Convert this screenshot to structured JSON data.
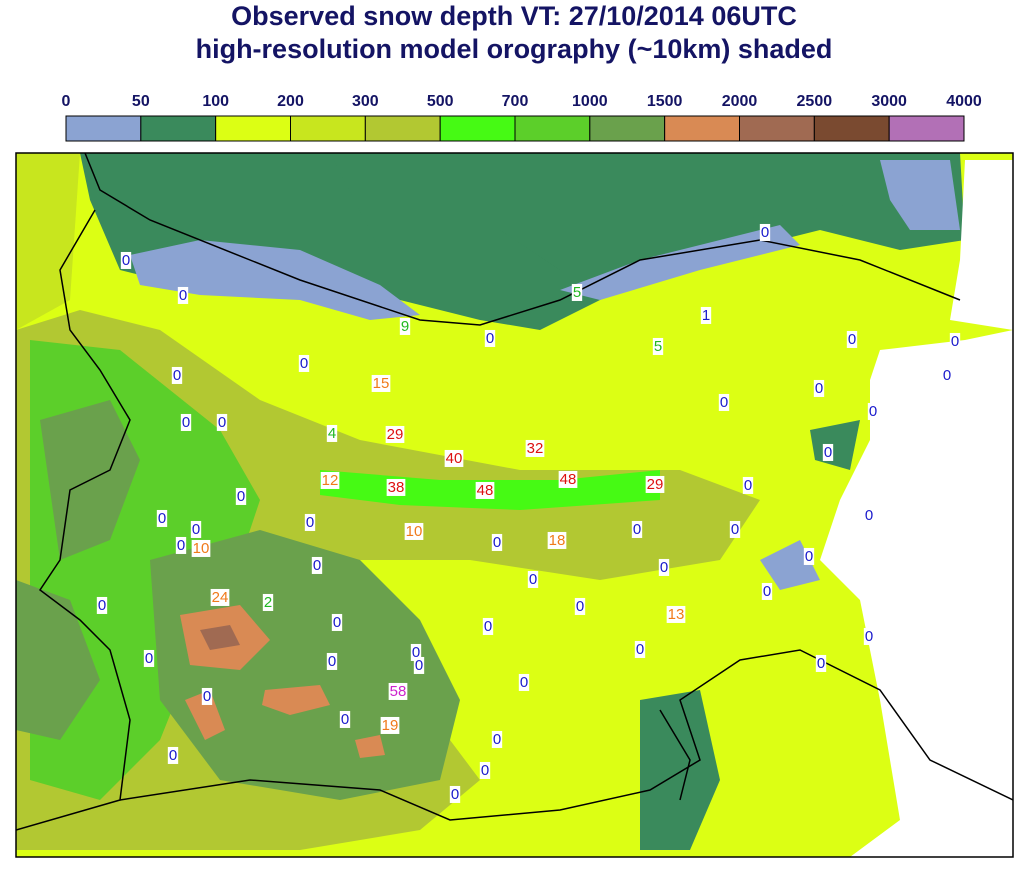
{
  "title": {
    "line1": "Observed snow depth VT: 27/10/2014 06UTC",
    "line2": "high-resolution model orography (~10km) shaded"
  },
  "legend": {
    "labels": [
      0,
      50,
      100,
      200,
      300,
      500,
      700,
      1000,
      1500,
      2000,
      2500,
      3000,
      4000
    ],
    "colors": [
      "#8ba3d2",
      "#3a8a5c",
      "#dcff14",
      "#c8e61e",
      "#b2c832",
      "#46fa14",
      "#5ccf2a",
      "#6aa14c",
      "#d98a54",
      "#a06a52",
      "#7a4a30",
      "#b270b6"
    ]
  },
  "stations": [
    {
      "value": 0,
      "color": "#1a1acc"
    },
    {
      "value": 0,
      "color": "#1a1acc"
    },
    {
      "value": 9,
      "color": "#22b822"
    },
    {
      "value": 5,
      "color": "#22b822"
    },
    {
      "value": 0,
      "color": "#1a1acc"
    },
    {
      "value": 1,
      "color": "#1a1acc"
    },
    {
      "value": 0,
      "color": "#1a1acc"
    },
    {
      "value": 0,
      "color": "#1a1acc"
    },
    {
      "value": 0,
      "color": "#1a1acc"
    },
    {
      "value": 5,
      "color": "#22b822"
    },
    {
      "value": 0,
      "color": "#1a1acc"
    },
    {
      "value": 0,
      "color": "#1a1acc"
    },
    {
      "value": 0,
      "color": "#1a1acc"
    },
    {
      "value": 15,
      "color": "#f07a1a"
    },
    {
      "value": 0,
      "color": "#1a1acc"
    },
    {
      "value": 0,
      "color": "#1a1acc"
    },
    {
      "value": 0,
      "color": "#1a1acc"
    },
    {
      "value": 0,
      "color": "#1a1acc"
    },
    {
      "value": 0,
      "color": "#1a1acc"
    },
    {
      "value": 4,
      "color": "#22b822"
    },
    {
      "value": 29,
      "color": "#dd1111"
    },
    {
      "value": 40,
      "color": "#dd1111"
    },
    {
      "value": 32,
      "color": "#dd1111"
    },
    {
      "value": 0,
      "color": "#1a1acc"
    },
    {
      "value": 12,
      "color": "#f07a1a"
    },
    {
      "value": 38,
      "color": "#dd1111"
    },
    {
      "value": 48,
      "color": "#dd1111"
    },
    {
      "value": 48,
      "color": "#dd1111"
    },
    {
      "value": 29,
      "color": "#dd1111"
    },
    {
      "value": 0,
      "color": "#1a1acc"
    },
    {
      "value": 0,
      "color": "#1a1acc"
    },
    {
      "value": 0,
      "color": "#1a1acc"
    },
    {
      "value": 0,
      "color": "#1a1acc"
    },
    {
      "value": 0,
      "color": "#1a1acc"
    },
    {
      "value": 0,
      "color": "#1a1acc"
    },
    {
      "value": 10,
      "color": "#f07a1a"
    },
    {
      "value": 0,
      "color": "#1a1acc"
    },
    {
      "value": 0,
      "color": "#1a1acc"
    },
    {
      "value": 0,
      "color": "#1a1acc"
    },
    {
      "value": 10,
      "color": "#f07a1a"
    },
    {
      "value": 0,
      "color": "#1a1acc"
    },
    {
      "value": 18,
      "color": "#f07a1a"
    },
    {
      "value": 0,
      "color": "#1a1acc"
    },
    {
      "value": 0,
      "color": "#1a1acc"
    },
    {
      "value": 0,
      "color": "#1a1acc"
    },
    {
      "value": 0,
      "color": "#1a1acc"
    },
    {
      "value": 0,
      "color": "#1a1acc"
    },
    {
      "value": 24,
      "color": "#f07a1a"
    },
    {
      "value": 2,
      "color": "#22b822"
    },
    {
      "value": 0,
      "color": "#1a1acc"
    },
    {
      "value": 0,
      "color": "#1a1acc"
    },
    {
      "value": 13,
      "color": "#f07a1a"
    },
    {
      "value": 0,
      "color": "#1a1acc"
    },
    {
      "value": 0,
      "color": "#1a1acc"
    },
    {
      "value": 0,
      "color": "#1a1acc"
    },
    {
      "value": 0,
      "color": "#1a1acc"
    },
    {
      "value": 0,
      "color": "#1a1acc"
    },
    {
      "value": 0,
      "color": "#1a1acc"
    },
    {
      "value": 0,
      "color": "#1a1acc"
    },
    {
      "value": 0,
      "color": "#1a1acc"
    },
    {
      "value": 0,
      "color": "#1a1acc"
    },
    {
      "value": 0,
      "color": "#1a1acc"
    },
    {
      "value": 58,
      "color": "#cc22cc"
    },
    {
      "value": 0,
      "color": "#1a1acc"
    },
    {
      "value": 0,
      "color": "#1a1acc"
    },
    {
      "value": 19,
      "color": "#f07a1a"
    },
    {
      "value": 0,
      "color": "#1a1acc"
    },
    {
      "value": 0,
      "color": "#1a1acc"
    },
    {
      "value": 0,
      "color": "#1a1acc"
    },
    {
      "value": 0,
      "color": "#1a1acc"
    }
  ]
}
